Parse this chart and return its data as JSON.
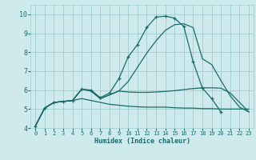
{
  "xlabel": "Humidex (Indice chaleur)",
  "xlim": [
    -0.5,
    23.5
  ],
  "ylim": [
    4,
    10.5
  ],
  "bg_color": "#ceeaec",
  "grid_color": "#9fcdd0",
  "line_color": "#1a6b6b",
  "yticks": [
    4,
    5,
    6,
    7,
    8,
    9,
    10
  ],
  "xticks": [
    0,
    1,
    2,
    3,
    4,
    5,
    6,
    7,
    8,
    9,
    10,
    11,
    12,
    13,
    14,
    15,
    16,
    17,
    18,
    19,
    20,
    21,
    22,
    23
  ],
  "series": [
    {
      "x": [
        0,
        1,
        2,
        3,
        4,
        5,
        6,
        7,
        8,
        9,
        10,
        11,
        12,
        13,
        14,
        15,
        16,
        17,
        18,
        19,
        20,
        21
      ],
      "y": [
        4.1,
        5.05,
        5.35,
        5.4,
        5.45,
        6.05,
        6.0,
        5.6,
        5.85,
        6.6,
        7.75,
        8.4,
        9.3,
        9.85,
        9.9,
        9.8,
        9.35,
        7.5,
        6.1,
        5.55,
        4.85,
        null
      ],
      "marker": "+"
    },
    {
      "x": [
        0,
        1,
        2,
        3,
        4,
        5,
        6,
        7,
        8,
        9,
        10,
        11,
        12,
        13,
        14,
        15,
        16,
        17,
        18,
        19,
        20,
        21,
        22,
        23
      ],
      "y": [
        4.1,
        5.05,
        5.35,
        5.4,
        5.45,
        5.55,
        5.45,
        5.35,
        5.25,
        5.2,
        5.15,
        5.12,
        5.1,
        5.1,
        5.1,
        5.07,
        5.05,
        5.05,
        5.02,
        5.02,
        5.0,
        5.0,
        5.0,
        5.0
      ],
      "marker": null
    },
    {
      "x": [
        0,
        1,
        2,
        3,
        4,
        5,
        6,
        7,
        8,
        9,
        10,
        11,
        12,
        13,
        14,
        15,
        16,
        17,
        18,
        19,
        20,
        21,
        22,
        23
      ],
      "y": [
        4.1,
        5.05,
        5.35,
        5.4,
        5.45,
        6.05,
        5.95,
        5.55,
        5.75,
        5.95,
        6.45,
        7.2,
        7.95,
        8.6,
        9.15,
        9.45,
        9.5,
        9.3,
        7.65,
        7.35,
        6.5,
        5.7,
        5.1,
        4.85
      ],
      "marker": null
    },
    {
      "x": [
        0,
        1,
        2,
        3,
        4,
        5,
        6,
        7,
        8,
        9,
        10,
        11,
        12,
        13,
        14,
        15,
        16,
        17,
        18,
        19,
        20,
        21,
        22,
        23
      ],
      "y": [
        4.1,
        5.05,
        5.35,
        5.4,
        5.45,
        6.05,
        5.95,
        5.55,
        5.75,
        5.95,
        5.9,
        5.88,
        5.88,
        5.9,
        5.93,
        5.97,
        6.03,
        6.08,
        6.12,
        6.12,
        6.1,
        5.85,
        5.35,
        4.85
      ],
      "marker": null
    }
  ]
}
